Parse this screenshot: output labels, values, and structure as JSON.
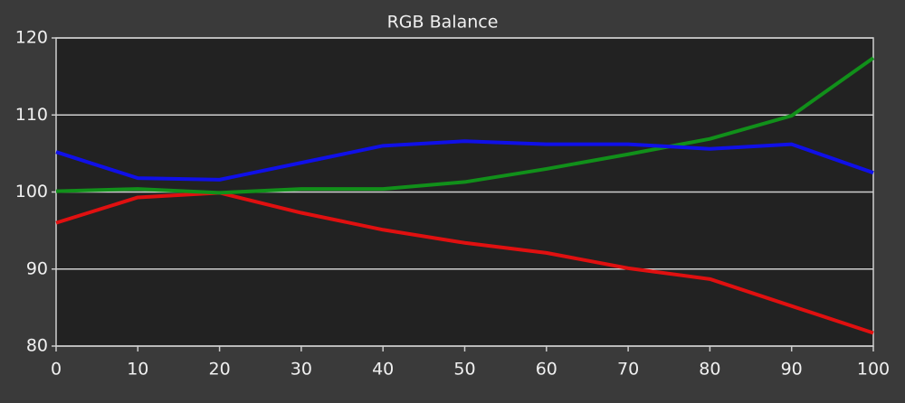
{
  "chart_data": {
    "type": "line",
    "title": "RGB Balance",
    "x": [
      0,
      10,
      20,
      30,
      40,
      50,
      60,
      70,
      80,
      90,
      100
    ],
    "series": [
      {
        "color": "#e01010",
        "values": [
          96.0,
          99.3,
          99.9,
          97.3,
          95.1,
          93.4,
          92.1,
          90.1,
          88.7,
          85.2,
          81.7
        ]
      },
      {
        "color": "#11901a",
        "values": [
          100.1,
          100.4,
          99.9,
          100.4,
          100.4,
          101.3,
          103.0,
          104.9,
          106.9,
          109.9,
          117.4
        ]
      },
      {
        "color": "#1010e8",
        "values": [
          105.2,
          101.8,
          101.6,
          103.8,
          106.0,
          106.6,
          106.2,
          106.2,
          105.6,
          106.2,
          102.5
        ]
      }
    ],
    "xlim": [
      0,
      100
    ],
    "xticks": [
      0,
      10,
      20,
      30,
      40,
      50,
      60,
      70,
      80,
      90,
      100
    ],
    "ylim": [
      80,
      120
    ],
    "yticks": [
      80,
      90,
      100,
      110,
      120
    ],
    "grid": true
  }
}
